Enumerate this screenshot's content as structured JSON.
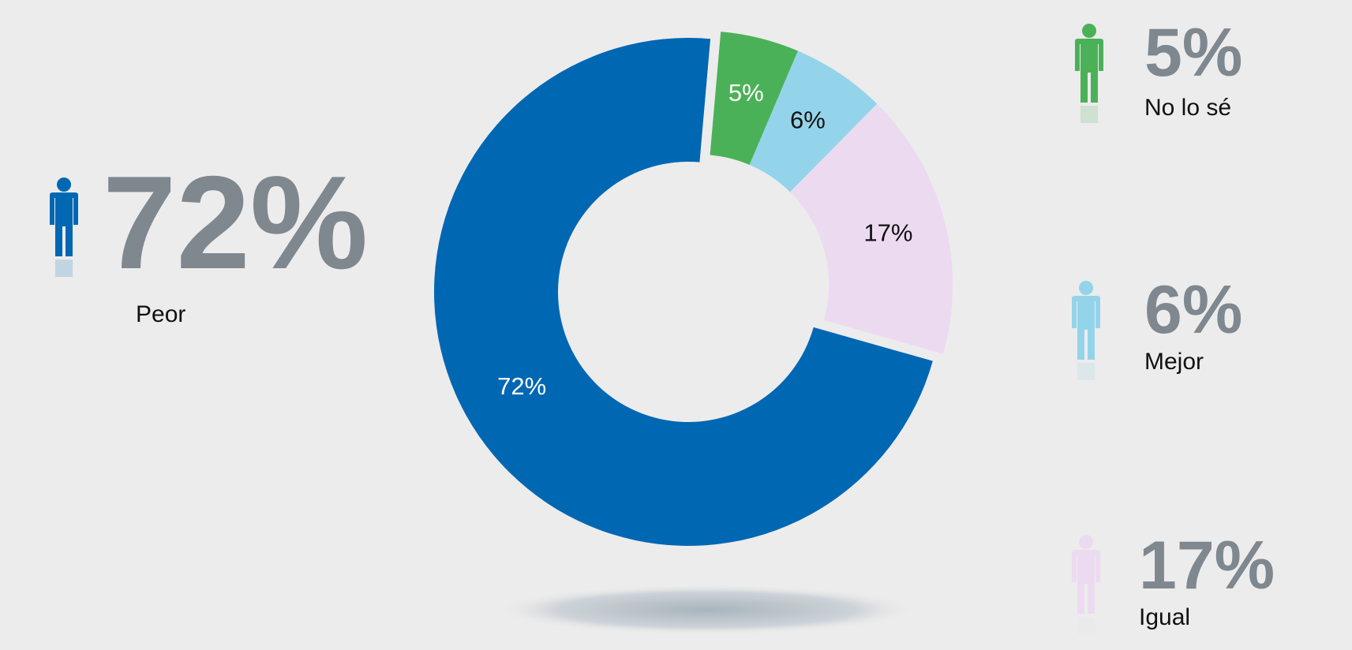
{
  "chart_data": {
    "type": "donut",
    "categories": [
      "No lo sé",
      "Mejor",
      "Igual",
      "Peor"
    ],
    "values": [
      5,
      6,
      17,
      72
    ],
    "value_labels": [
      "5%",
      "6%",
      "17%",
      "72%"
    ],
    "colors": [
      "#4bb158",
      "#93d4ea",
      "#ecdbf0",
      "#0067b3"
    ]
  }
}
